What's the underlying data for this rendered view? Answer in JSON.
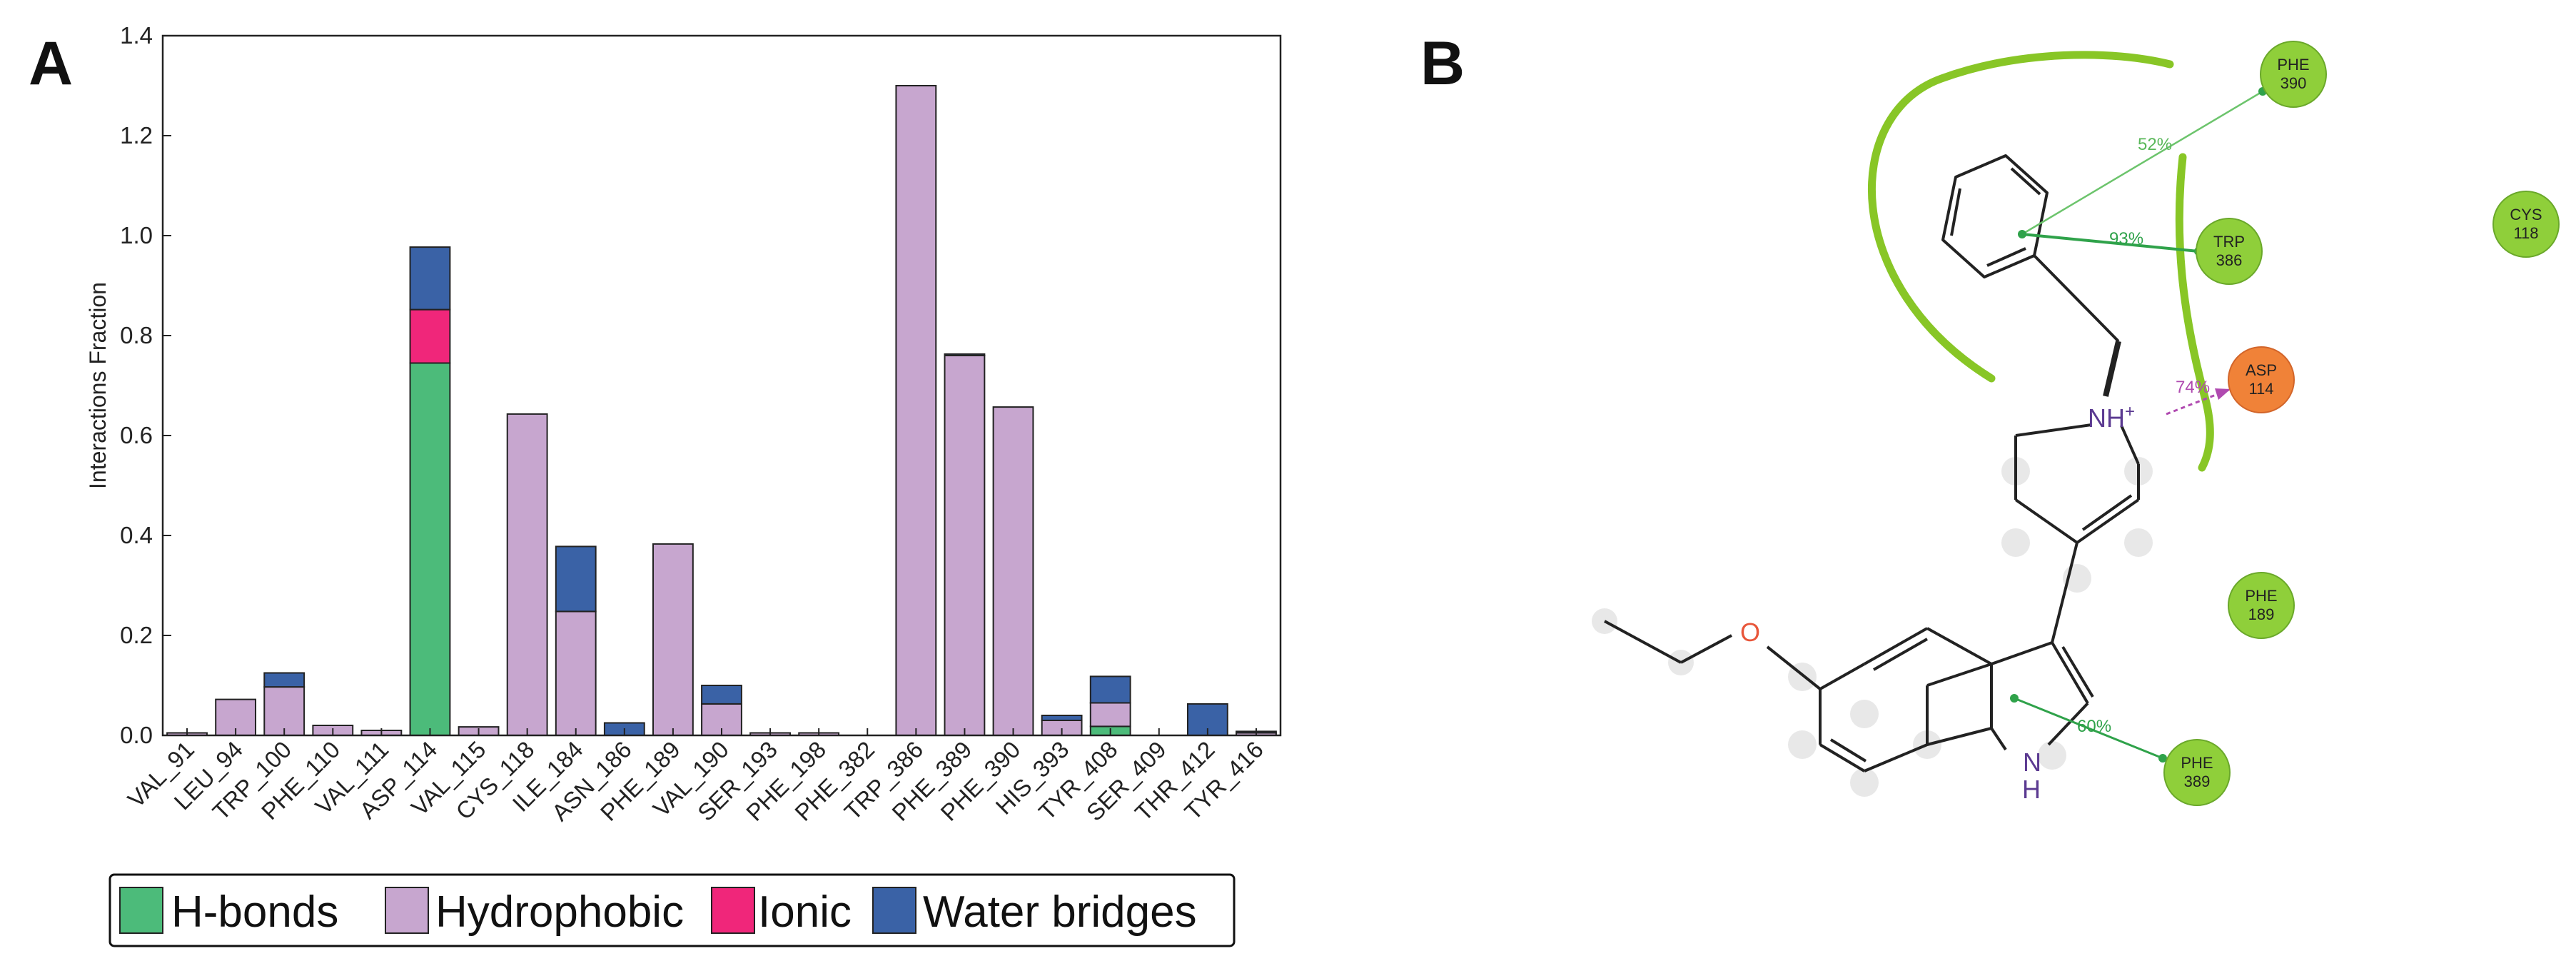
{
  "panel_a_letter": "A",
  "panel_b_letter": "B",
  "colors": {
    "hbonds": "#4cbb7a",
    "hydrophobic": "#c7a6cf",
    "ionic": "#f0267a",
    "water": "#3a62a6",
    "residue_green": "#8fcf3a",
    "residue_orange": "#f08238",
    "pocket": "#88c626"
  },
  "chart_data": {
    "type": "bar",
    "stacked": true,
    "ylabel": "Interactions Fraction",
    "ylim": [
      0,
      1.4
    ],
    "yticks": [
      "0.0",
      "0.2",
      "0.4",
      "0.6",
      "0.8",
      "1.0",
      "1.2",
      "1.4"
    ],
    "categories": [
      "VAL_91",
      "LEU_94",
      "TRP_100",
      "PHE_110",
      "VAL_111",
      "ASP_114",
      "VAL_115",
      "CYS_118",
      "ILE_184",
      "ASN_186",
      "PHE_189",
      "VAL_190",
      "SER_193",
      "PHE_198",
      "PHE_382",
      "TRP_386",
      "PHE_389",
      "PHE_390",
      "HIS_393",
      "TYR_408",
      "SER_409",
      "THR_412",
      "TYR_416"
    ],
    "series": [
      {
        "name": "H-bonds",
        "values": [
          0,
          0,
          0,
          0,
          0,
          0.745,
          0,
          0,
          0,
          0,
          0,
          0,
          0,
          0,
          0,
          0,
          0,
          0,
          0,
          0.018,
          0,
          0,
          0
        ]
      },
      {
        "name": "Hydrophobic",
        "values": [
          0.005,
          0.072,
          0.097,
          0.02,
          0.01,
          0,
          0.017,
          0.643,
          0.248,
          0,
          0.383,
          0.063,
          0.005,
          0.005,
          0,
          1.3,
          0.76,
          0.657,
          0.03,
          0.047,
          0,
          0,
          0.005
        ]
      },
      {
        "name": "Ionic",
        "values": [
          0,
          0,
          0,
          0,
          0,
          0.107,
          0,
          0,
          0,
          0,
          0,
          0,
          0,
          0,
          0,
          0,
          0,
          0,
          0,
          0,
          0,
          0,
          0
        ]
      },
      {
        "name": "Water bridges",
        "values": [
          0,
          0,
          0.028,
          0,
          0,
          0.125,
          0,
          0,
          0.13,
          0.025,
          0,
          0.037,
          0,
          0,
          0,
          0,
          0.003,
          0,
          0.01,
          0.053,
          0,
          0.063,
          0.003
        ]
      }
    ],
    "legend": [
      "H-bonds",
      "Hydrophobic",
      "Ionic",
      "Water bridges"
    ],
    "legend_position": "bottom"
  },
  "diagram": {
    "residues": [
      {
        "name": "PHE",
        "num": "390",
        "kind": "green"
      },
      {
        "name": "TRP",
        "num": "386",
        "kind": "green"
      },
      {
        "name": "CYS",
        "num": "118",
        "kind": "green"
      },
      {
        "name": "ASP",
        "num": "114",
        "kind": "orange"
      },
      {
        "name": "PHE",
        "num": "189",
        "kind": "green"
      },
      {
        "name": "PHE",
        "num": "389",
        "kind": "green"
      }
    ],
    "interactions": [
      "52%",
      "93%",
      "74%",
      "60%"
    ],
    "atoms": {
      "nh_plus_main": "NH",
      "nh_plus_sup": "+",
      "oxygen": "O",
      "indole_n": "N",
      "indole_h": "H"
    }
  }
}
